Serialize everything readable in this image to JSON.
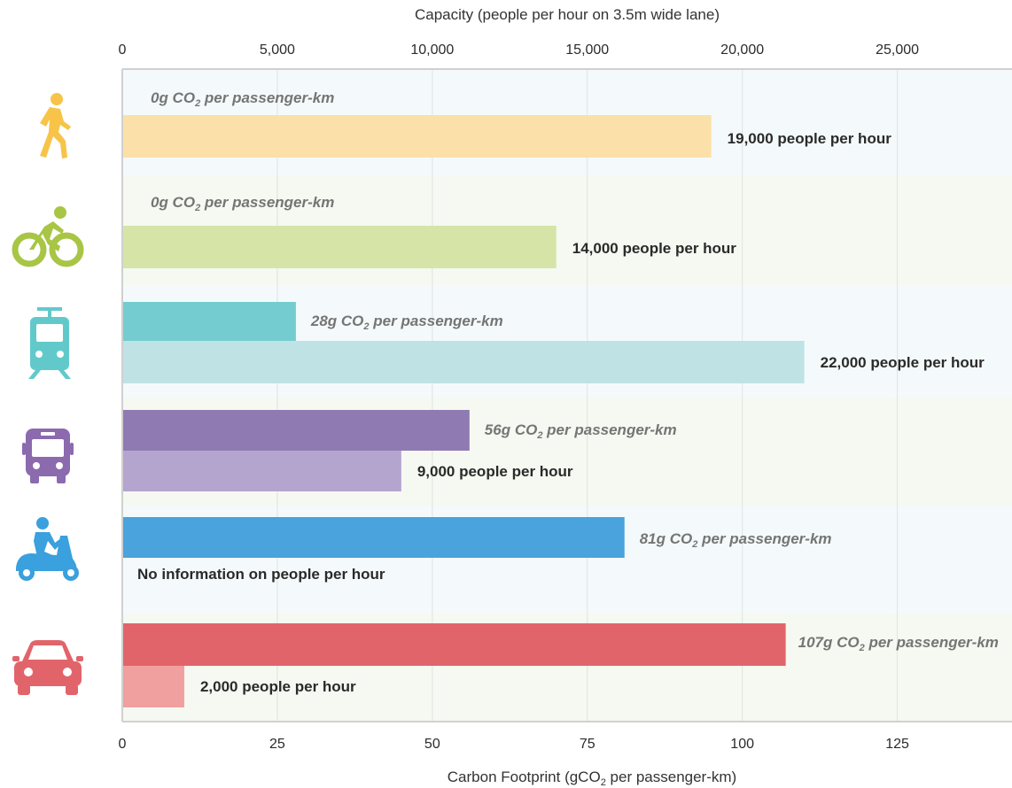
{
  "chart_data": {
    "type": "bar",
    "orientation": "horizontal",
    "top_axis": {
      "title": "Capacity (people per hour on 3.5m wide lane)",
      "range": [
        0,
        28700
      ],
      "ticks": [
        0,
        5000,
        10000,
        15000,
        20000,
        25000
      ],
      "tick_labels": [
        "0",
        "5,000",
        "10,000",
        "15,000",
        "20,000",
        "25,000"
      ]
    },
    "bottom_axis": {
      "title_pre": "Carbon Footprint (gCO",
      "title_sub": "2",
      "title_post": " per passenger-km)",
      "range": [
        0,
        143.5
      ],
      "ticks": [
        0,
        25,
        50,
        75,
        100,
        125
      ],
      "tick_labels": [
        "0",
        "25",
        "50",
        "75",
        "100",
        "125"
      ]
    },
    "grid": true,
    "categories": [
      "Walking",
      "Cycling",
      "Tram",
      "Bus",
      "Motor scooter",
      "Car"
    ],
    "series": [
      {
        "values": [
          0,
          0,
          28,
          56,
          81,
          107
        ]
      },
      {
        "values": [
          19000,
          14000,
          22000,
          9000,
          null,
          2000
        ]
      }
    ],
    "rows": [
      {
        "icon": "pedestrian-icon",
        "co2": {
          "value": 0,
          "pre": "0g CO",
          "sub": "2",
          "post": " per passenger-km",
          "color": null
        },
        "capacity": {
          "value": 19000,
          "label": "19,000 people per hour",
          "color": "#fbe0a9"
        }
      },
      {
        "icon": "bicycle-icon",
        "co2": {
          "value": 0,
          "pre": "0g CO",
          "sub": "2",
          "post": " per passenger-km",
          "color": null
        },
        "capacity": {
          "value": 14000,
          "label": "14,000 people per hour",
          "color": "#d6e4a8"
        }
      },
      {
        "icon": "tram-icon",
        "co2": {
          "value": 28,
          "pre": "28g CO",
          "sub": "2",
          "post": " per passenger-km",
          "color": "#74ccd0"
        },
        "capacity": {
          "value": 22000,
          "label": "22,000 people per hour",
          "color": "#bfe3e4"
        }
      },
      {
        "icon": "bus-icon",
        "co2": {
          "value": 56,
          "pre": "56g CO",
          "sub": "2",
          "post": " per passenger-km",
          "color": "#8f7ab2"
        },
        "capacity": {
          "value": 9000,
          "label": "9,000 people per hour",
          "color": "#b4a5cf"
        }
      },
      {
        "icon": "motor-scooter-icon",
        "co2": {
          "value": 81,
          "pre": "81g CO",
          "sub": "2",
          "post": " per passenger-km",
          "color": "#4aa3dc"
        },
        "capacity": {
          "value": null,
          "label": "No information on people per hour",
          "color": null
        }
      },
      {
        "icon": "car-icon",
        "co2": {
          "value": 107,
          "pre": "107g CO",
          "sub": "2",
          "post": "  per passenger-km",
          "color": "#e2646b"
        },
        "capacity": {
          "value": 2000,
          "label": "2,000 people per hour",
          "color": "#f0a09e"
        }
      }
    ],
    "icon_colors": [
      "#f7c449",
      "#a8c545",
      "#62c9cb",
      "#8b6aae",
      "#3aa0de",
      "#e2646b"
    ]
  }
}
